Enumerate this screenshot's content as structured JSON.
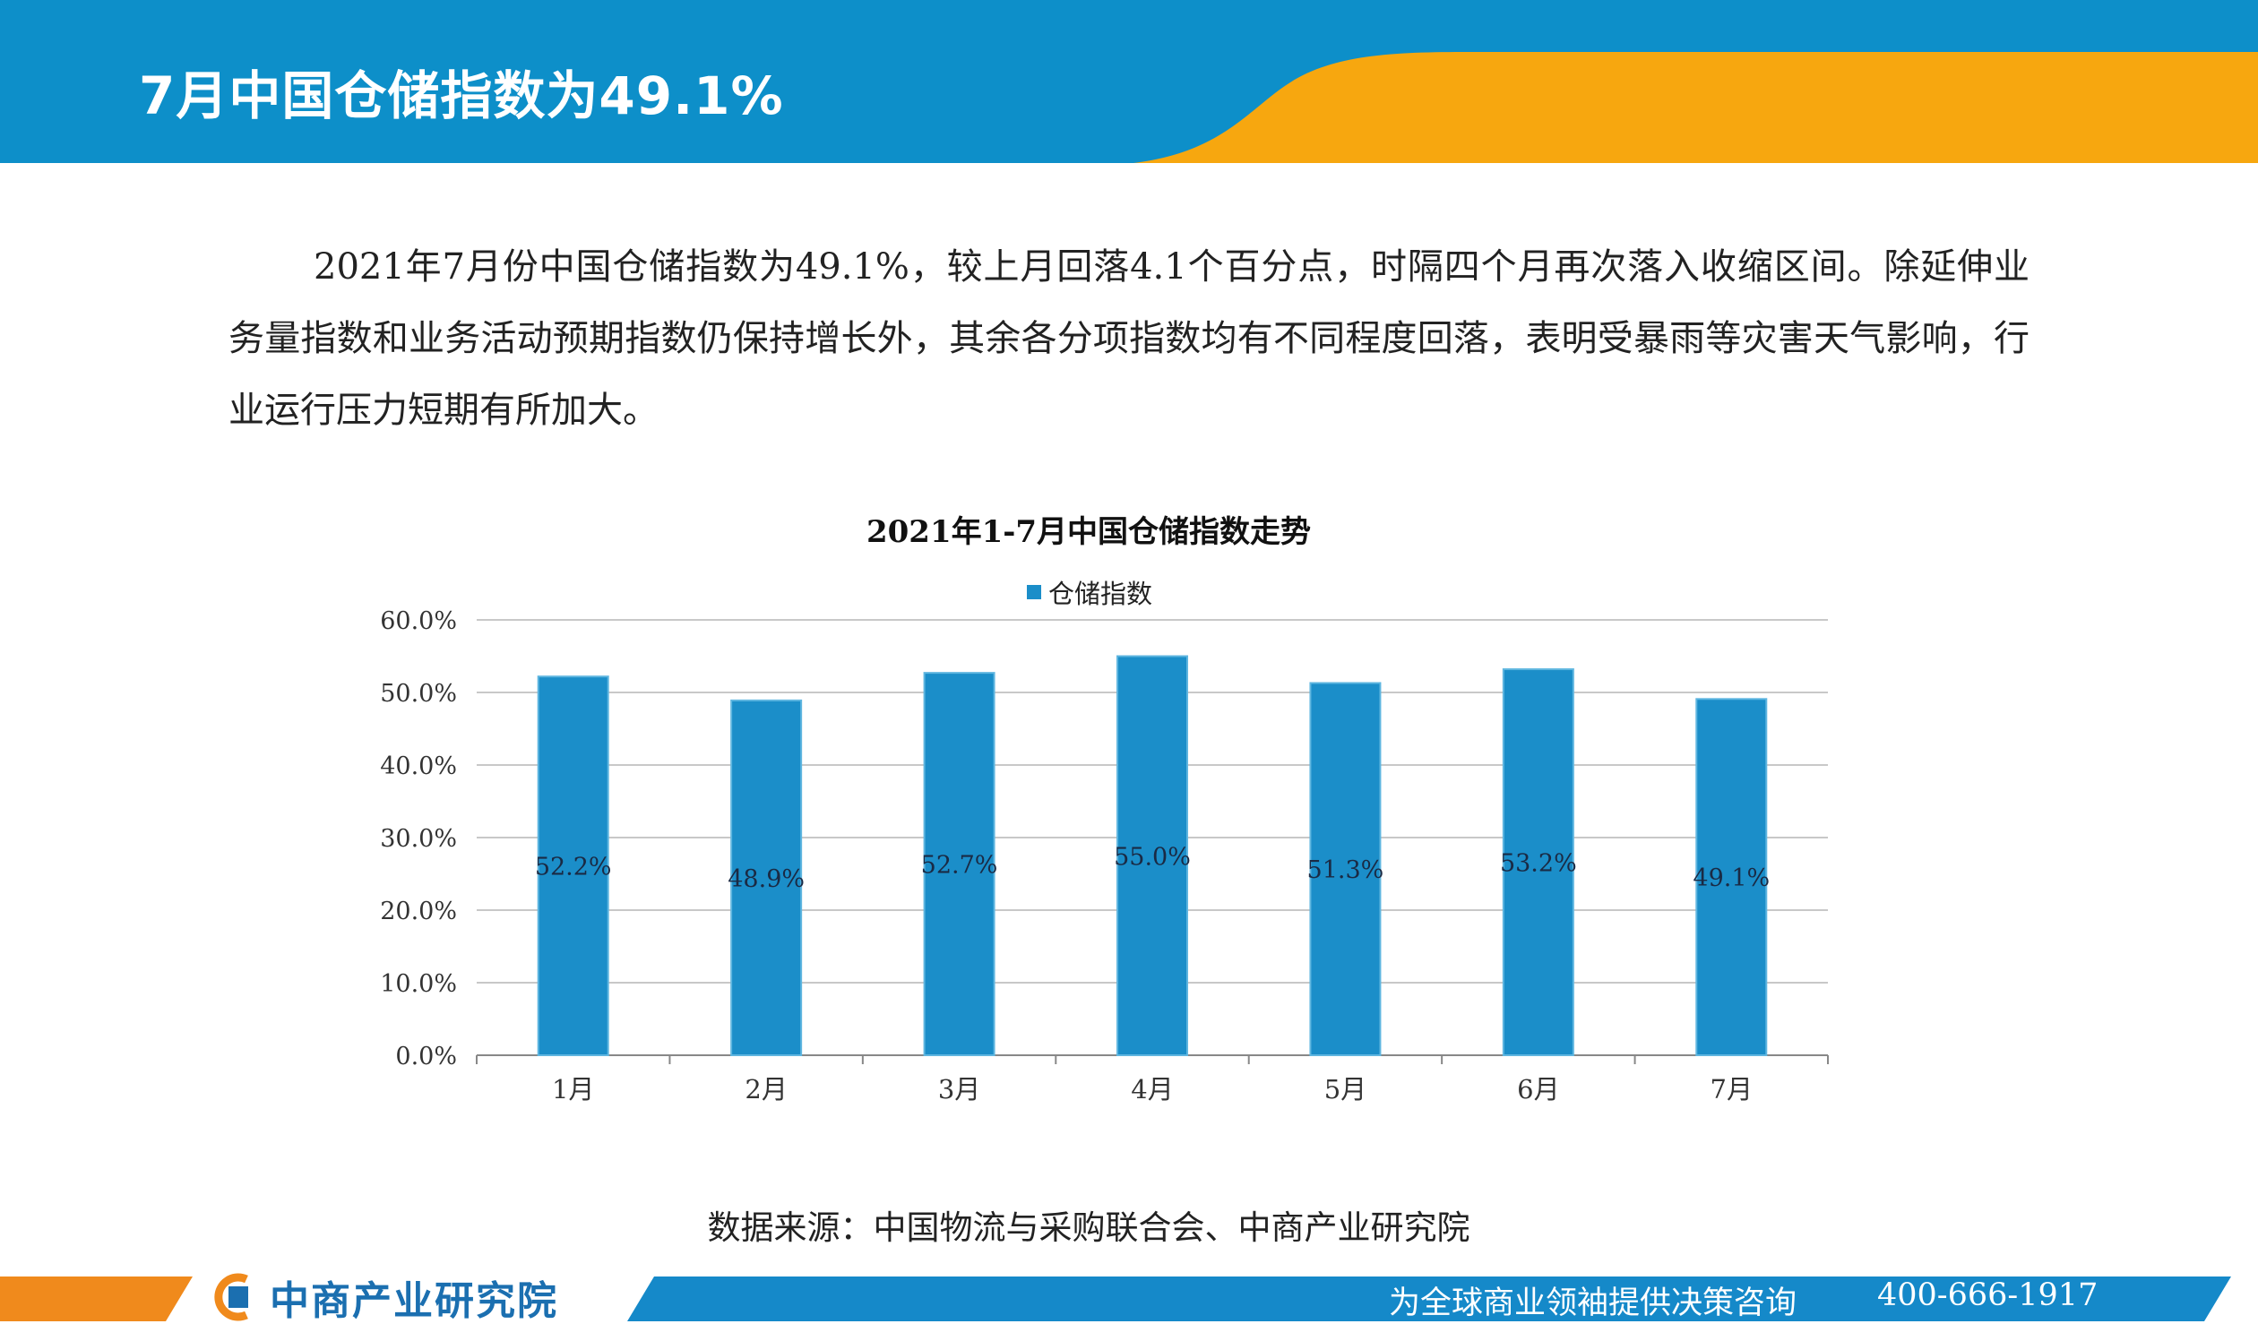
{
  "header": {
    "title": "7月中国仓储指数为49.1%"
  },
  "intro": {
    "text": "2021年7月份中国仓储指数为49.1%，较上月回落4.1个百分点，时隔四个月再次落入收缩区间。除延伸业务量指数和业务活动预期指数仍保持增长外，其余各分项指数均有不同程度回落，表明受暴雨等灾害天气影响，行业运行压力短期有所加大。"
  },
  "chart_data": {
    "type": "bar",
    "title": "2021年1-7月中国仓储指数走势",
    "categories": [
      "1月",
      "2月",
      "3月",
      "4月",
      "5月",
      "6月",
      "7月"
    ],
    "series": [
      {
        "name": "仓储指数",
        "values": [
          52.2,
          48.9,
          52.7,
          55.0,
          51.3,
          53.2,
          49.1
        ],
        "labels": [
          "52.2%",
          "48.9%",
          "52.7%",
          "55.0%",
          "51.3%",
          "53.2%",
          "49.1%"
        ]
      }
    ],
    "y_ticks": [
      "0.0%",
      "10.0%",
      "20.0%",
      "30.0%",
      "40.0%",
      "50.0%",
      "60.0%"
    ],
    "ylim": [
      0,
      60
    ],
    "grid": true,
    "legend_position": "top",
    "bar_color": "#1b8ec9"
  },
  "source": {
    "text": "数据来源：中国物流与采购联合会、中商产业研究院"
  },
  "footer": {
    "logo_text": "中商产业研究院",
    "slogan": "为全球商业领袖提供决策咨询",
    "phone": "400-666-1917"
  },
  "colors": {
    "header_blue": "#0d8fc9",
    "accent_orange": "#f7a70f",
    "bar": "#1b8ec9"
  }
}
